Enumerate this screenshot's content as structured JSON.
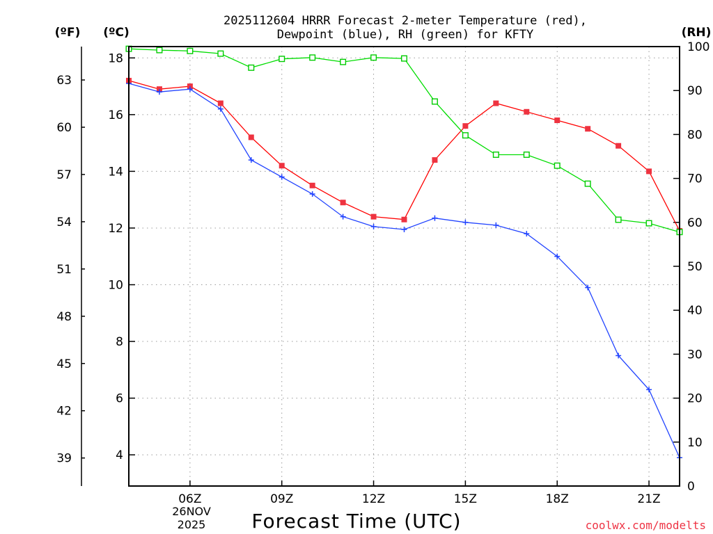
{
  "chart_data": {
    "type": "line",
    "title_line1": "2025112604 HRRR Forecast 2-meter Temperature (red),",
    "title_line2": "Dewpoint (blue), RH (green) for KFTY",
    "xlabel": "Forecast Time (UTC)",
    "credit": "coolwx.com/modelts",
    "units": {
      "fahrenheit": "(ºF)",
      "celsius": "(ºC)",
      "rh": "(RH)"
    },
    "date_label": {
      "day": "26NOV",
      "year": "2025"
    },
    "x_hours": [
      4,
      5,
      6,
      7,
      8,
      9,
      10,
      11,
      12,
      13,
      14,
      15,
      16,
      17,
      18,
      19,
      20,
      21,
      22
    ],
    "xlim": [
      4,
      22
    ],
    "x_ticks": [
      {
        "hour": 6,
        "label": "06Z"
      },
      {
        "hour": 9,
        "label": "09Z"
      },
      {
        "hour": 12,
        "label": "12Z"
      },
      {
        "hour": 15,
        "label": "15Z"
      },
      {
        "hour": 18,
        "label": "18Z"
      },
      {
        "hour": 21,
        "label": "21Z"
      }
    ],
    "ylim_celsius": [
      2.9,
      18.4
    ],
    "y_ticks_celsius": [
      "4",
      "6",
      "8",
      "10",
      "12",
      "14",
      "16",
      "18"
    ],
    "y_ticks_fahrenheit": [
      "39",
      "42",
      "45",
      "48",
      "51",
      "54",
      "57",
      "60",
      "63"
    ],
    "ylim_rh": [
      0,
      100
    ],
    "y_ticks_rh": [
      "0",
      "10",
      "20",
      "30",
      "40",
      "50",
      "60",
      "70",
      "80",
      "90",
      "100"
    ],
    "series": [
      {
        "name": "2-meter Temperature",
        "axis": "celsius",
        "color": "#ff0000",
        "marker_color": "#ee3340",
        "marker": "filled-square",
        "values": [
          17.2,
          16.9,
          17.0,
          16.4,
          15.2,
          14.2,
          13.5,
          12.9,
          12.4,
          12.3,
          14.4,
          15.6,
          16.4,
          16.1,
          15.8,
          15.5,
          14.9,
          14.0,
          11.9
        ]
      },
      {
        "name": "Dewpoint",
        "axis": "celsius",
        "color": "#2244ff",
        "marker_color": "#2244ff",
        "marker": "plus",
        "values": [
          17.1,
          16.8,
          16.9,
          16.2,
          14.4,
          13.8,
          13.2,
          12.4,
          12.05,
          11.95,
          12.35,
          12.2,
          12.1,
          11.8,
          11.0,
          9.9,
          7.5,
          6.3,
          3.9
        ]
      },
      {
        "name": "RH",
        "axis": "rh",
        "color": "#00dd00",
        "marker_color": "#00cc00",
        "marker": "open-square",
        "values": [
          99.5,
          99.2,
          99.0,
          98.4,
          95.2,
          97.2,
          97.5,
          96.5,
          97.5,
          97.3,
          87.5,
          79.8,
          75.4,
          75.4,
          72.9,
          68.8,
          60.6,
          59.8,
          57.8
        ]
      }
    ]
  }
}
